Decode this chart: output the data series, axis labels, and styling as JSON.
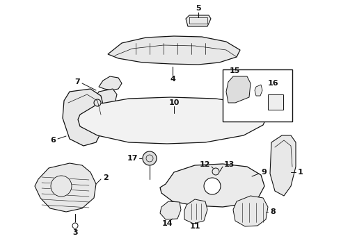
{
  "background_color": "#ffffff",
  "fig_width": 4.9,
  "fig_height": 3.6,
  "dpi": 100,
  "line_color": "#111111",
  "label_fontsize": 8,
  "label_fontweight": "bold",
  "fill_light": "#e8e8e8",
  "fill_white": "#ffffff"
}
